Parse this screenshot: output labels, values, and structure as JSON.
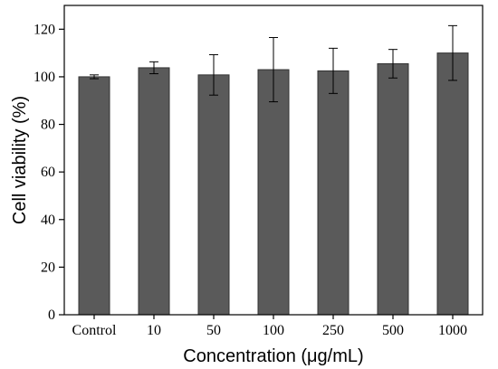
{
  "chart_data": {
    "type": "bar",
    "xlabel": "Concentration (μg/mL)",
    "ylabel": "Cell viability (%)",
    "ylim": [
      0,
      130
    ],
    "yticks": [
      0,
      20,
      40,
      60,
      80,
      100,
      120
    ],
    "categories": [
      "Control",
      "10",
      "50",
      "100",
      "250",
      "500",
      "1000"
    ],
    "values": [
      100,
      103.8,
      100.8,
      103,
      102.5,
      105.5,
      110
    ],
    "error": [
      0.8,
      2.5,
      8.5,
      13.5,
      9.5,
      6,
      11.5
    ],
    "bar_color": "#5a5a5a",
    "grid": false
  }
}
